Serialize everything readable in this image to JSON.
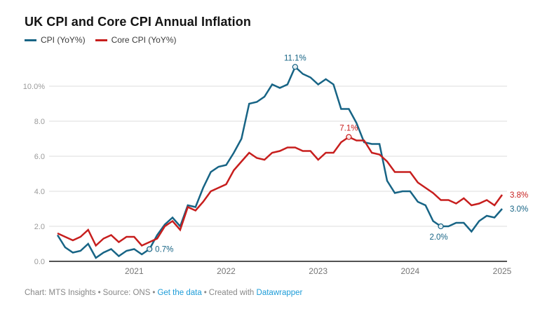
{
  "title": "UK CPI and Core CPI Annual Inflation",
  "colors": {
    "cpi": "#176485",
    "core": "#c71e1d",
    "grid": "#dcdcdc",
    "axis": "#1a1a1a",
    "y_tick_text": "#9a9a9a",
    "x_tick_text": "#767676",
    "footer_text": "#888888",
    "link": "#1d9cd8"
  },
  "legend": {
    "items": [
      {
        "label": "CPI (YoY%)",
        "color": "#176485"
      },
      {
        "label": "Core CPI (YoY%)",
        "color": "#c71e1d"
      }
    ]
  },
  "chart_data": {
    "type": "line",
    "title": "UK CPI and Core CPI Annual Inflation",
    "x_unit": "month",
    "x_start": "2020-03",
    "x_end": "2025-01",
    "ylim": [
      0,
      11.6
    ],
    "grid": "horizontal",
    "legend_position": "top-left",
    "y_ticks": [
      {
        "value": 0,
        "label": "0.0"
      },
      {
        "value": 2,
        "label": "2.0"
      },
      {
        "value": 4,
        "label": "4.0"
      },
      {
        "value": 6,
        "label": "6.0"
      },
      {
        "value": 8,
        "label": "8.0"
      },
      {
        "value": 10,
        "label": "10.0%"
      }
    ],
    "x_ticks": [
      {
        "index": 10,
        "label": "2021"
      },
      {
        "index": 22,
        "label": "2022"
      },
      {
        "index": 34,
        "label": "2023"
      },
      {
        "index": 46,
        "label": "2024"
      },
      {
        "index": 58,
        "label": "2025"
      }
    ],
    "series": [
      {
        "id": "cpi",
        "name": "CPI (YoY%)",
        "color": "#176485",
        "end_label": "3.0%",
        "values": [
          1.5,
          0.8,
          0.5,
          0.6,
          1.0,
          0.2,
          0.5,
          0.7,
          0.3,
          0.6,
          0.7,
          0.4,
          0.7,
          1.5,
          2.1,
          2.5,
          2.0,
          3.2,
          3.1,
          4.2,
          5.1,
          5.4,
          5.5,
          6.2,
          7.0,
          9.0,
          9.1,
          9.4,
          10.1,
          9.9,
          10.1,
          11.1,
          10.7,
          10.5,
          10.1,
          10.4,
          10.1,
          8.7,
          8.7,
          7.9,
          6.8,
          6.7,
          6.7,
          4.6,
          3.9,
          4.0,
          4.0,
          3.4,
          3.2,
          2.3,
          2.0,
          2.0,
          2.2,
          2.2,
          1.7,
          2.3,
          2.6,
          2.5,
          3.0
        ]
      },
      {
        "id": "core",
        "name": "Core CPI (YoY%)",
        "color": "#c71e1d",
        "end_label": "3.8%",
        "values": [
          1.6,
          1.4,
          1.2,
          1.4,
          1.8,
          0.9,
          1.3,
          1.5,
          1.1,
          1.4,
          1.4,
          0.9,
          1.1,
          1.3,
          2.0,
          2.3,
          1.8,
          3.1,
          2.9,
          3.4,
          4.0,
          4.2,
          4.4,
          5.2,
          5.7,
          6.2,
          5.9,
          5.8,
          6.2,
          6.3,
          6.5,
          6.5,
          6.3,
          6.3,
          5.8,
          6.2,
          6.2,
          6.8,
          7.1,
          6.9,
          6.9,
          6.2,
          6.1,
          5.7,
          5.1,
          5.1,
          5.1,
          4.5,
          4.2,
          3.9,
          3.5,
          3.5,
          3.3,
          3.6,
          3.2,
          3.3,
          3.5,
          3.2,
          3.8
        ]
      }
    ],
    "annotations": [
      {
        "series_id": "cpi",
        "index": 12,
        "label": "0.7%",
        "placement": "right"
      },
      {
        "series_id": "cpi",
        "index": 31,
        "label": "11.1%",
        "placement": "above"
      },
      {
        "series_id": "core",
        "index": 38,
        "label": "7.1%",
        "placement": "above"
      },
      {
        "series_id": "cpi",
        "index": 50,
        "label": "2.0%",
        "placement": "below"
      }
    ]
  },
  "footer": {
    "chart_credit": "Chart: MTS Insights",
    "source": "Source: ONS",
    "get_data_label": "Get the data",
    "created_with": "Created with",
    "datawrapper_label": "Datawrapper",
    "separator": "•"
  }
}
